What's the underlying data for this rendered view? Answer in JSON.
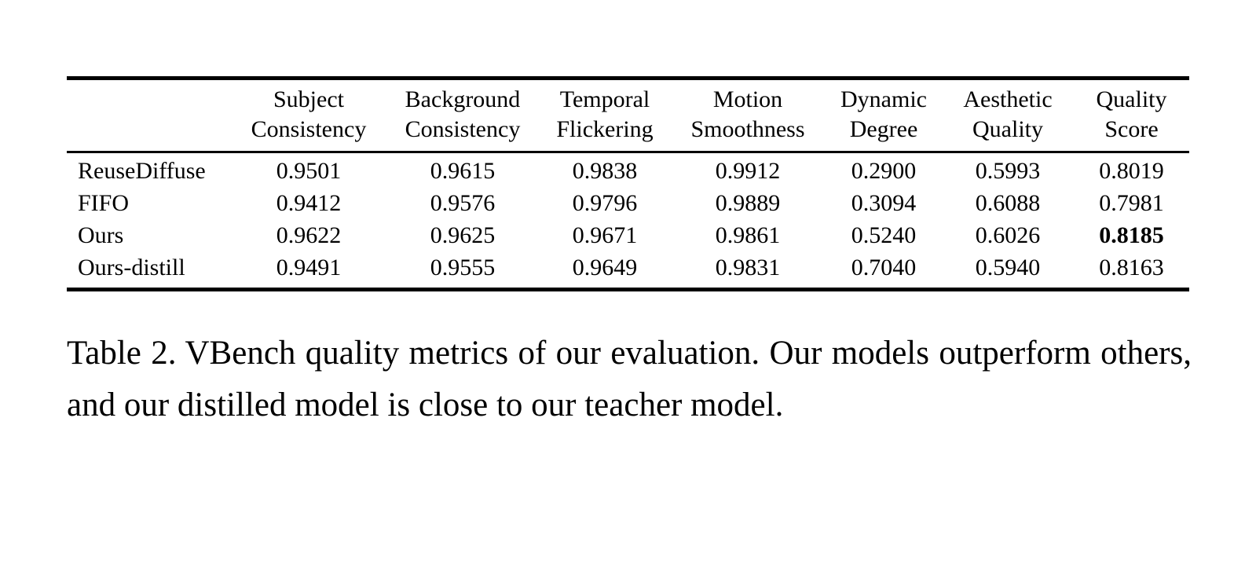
{
  "table": {
    "columns": [
      {
        "line1": "Subject",
        "line2": "Consistency"
      },
      {
        "line1": "Background",
        "line2": "Consistency"
      },
      {
        "line1": "Temporal",
        "line2": "Flickering"
      },
      {
        "line1": "Motion",
        "line2": "Smoothness"
      },
      {
        "line1": "Dynamic",
        "line2": "Degree"
      },
      {
        "line1": "Aesthetic",
        "line2": "Quality"
      },
      {
        "line1": "Quality",
        "line2": "Score"
      }
    ],
    "rows": [
      {
        "label": "ReuseDiffuse",
        "values": [
          "0.9501",
          "0.9615",
          "0.9838",
          "0.9912",
          "0.2900",
          "0.5993",
          "0.8019"
        ]
      },
      {
        "label": "FIFO",
        "values": [
          "0.9412",
          "0.9576",
          "0.9796",
          "0.9889",
          "0.3094",
          "0.6088",
          "0.7981"
        ]
      },
      {
        "label": "Ours",
        "values": [
          "0.9622",
          "0.9625",
          "0.9671",
          "0.9861",
          "0.5240",
          "0.6026",
          "0.8185"
        ]
      },
      {
        "label": "Ours-distill",
        "values": [
          "0.9491",
          "0.9555",
          "0.9649",
          "0.9831",
          "0.7040",
          "0.5940",
          "0.8163"
        ]
      }
    ],
    "bold_cell": {
      "row": "Ours",
      "column": "Quality Score",
      "value": "0.8185"
    }
  },
  "caption": {
    "label": "Table 2.",
    "text": "VBench quality metrics of our evaluation. Our models outperform others, and our distilled model is close to our teacher model."
  },
  "colors": {
    "text": "#000000",
    "background": "#ffffff",
    "rule": "#000000"
  }
}
